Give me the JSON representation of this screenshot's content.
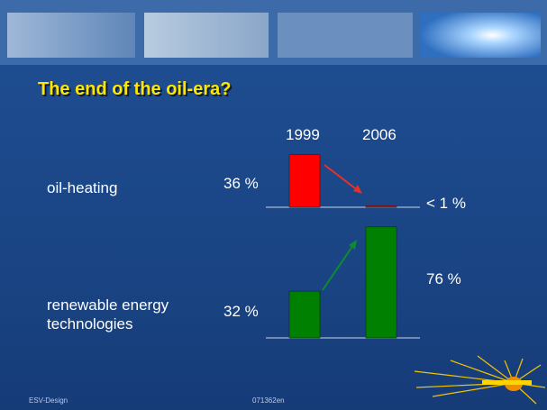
{
  "header": {
    "title": "The end of the oil-era?"
  },
  "chart_data": {
    "type": "bar",
    "categories": [
      "1999",
      "2006"
    ],
    "series": [
      {
        "name": "oil-heating",
        "color": "#ff0000",
        "values": [
          36,
          1
        ],
        "value_labels": [
          "36 %",
          "< 1 %"
        ]
      },
      {
        "name": "renewable energy technologies",
        "color": "#008000",
        "values": [
          32,
          76
        ],
        "value_labels": [
          "32 %",
          "76 %"
        ]
      }
    ]
  },
  "footer": {
    "left": "ESV-Design",
    "center": "071362en"
  }
}
